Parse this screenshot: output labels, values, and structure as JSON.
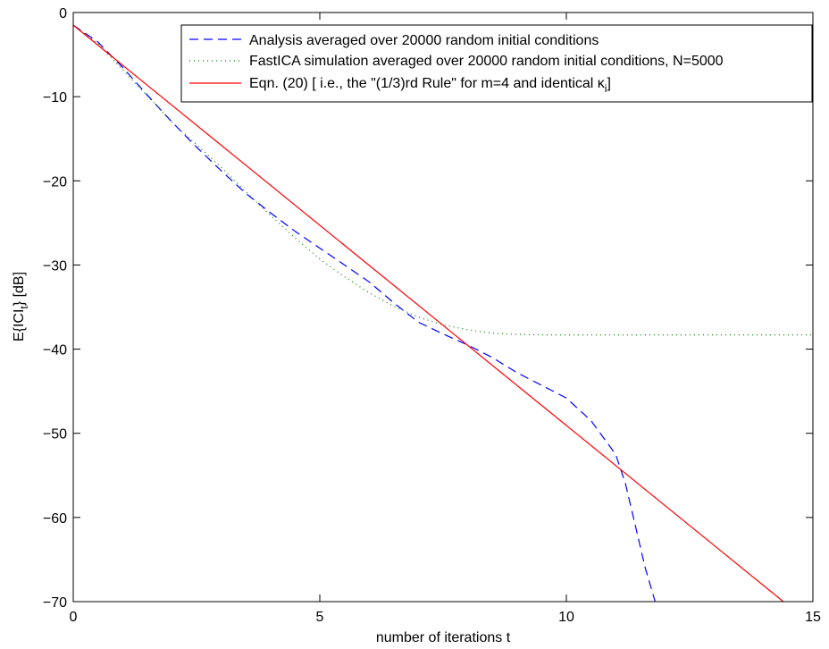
{
  "chart_data": {
    "type": "line",
    "title": "",
    "xlabel": "number of iterations  t",
    "ylabel": "E{ICI",
    "ylabel_sub": "t",
    "ylabel_tail": "}  [dB]",
    "xlim": [
      0,
      15
    ],
    "ylim": [
      -70,
      0
    ],
    "xticks": [
      0,
      5,
      10,
      15
    ],
    "yticks": [
      0,
      -10,
      -20,
      -30,
      -40,
      -50,
      -60,
      -70
    ],
    "grid": false,
    "legend_position": "top-right",
    "series": [
      {
        "name": "Analysis averaged over 20000 random initial conditions",
        "color": "#0000ff",
        "style": "dashed",
        "x": [
          0,
          0.5,
          1,
          1.5,
          2,
          2.5,
          3,
          3.5,
          4,
          4.5,
          5,
          5.5,
          6,
          6.5,
          7,
          7.5,
          8,
          8.5,
          9,
          9.5,
          10,
          10.5,
          11,
          11.2,
          11.4,
          11.6,
          11.8
        ],
        "y": [
          -1.5,
          -3.5,
          -6.5,
          -9.8,
          -13,
          -16,
          -18.8,
          -21.5,
          -23.8,
          -26,
          -28,
          -30,
          -32,
          -34.5,
          -36.8,
          -38.2,
          -39.5,
          -41,
          -42.8,
          -44.3,
          -45.8,
          -48.5,
          -52.5,
          -56,
          -61,
          -66,
          -70
        ]
      },
      {
        "name": "FastICA simulation averaged over 20000 random initial conditions, N=5000",
        "color": "#008000",
        "style": "dotted",
        "x": [
          0,
          0.5,
          1,
          1.5,
          2,
          2.5,
          3,
          3.5,
          4,
          4.5,
          5,
          5.5,
          6,
          6.5,
          7,
          7.5,
          8,
          8.5,
          9,
          9.5,
          10,
          11,
          12,
          13,
          14,
          15
        ],
        "y": [
          -1.5,
          -3.7,
          -6.8,
          -9.9,
          -13,
          -15.7,
          -18.4,
          -21.3,
          -24.1,
          -26.8,
          -29.3,
          -31.4,
          -33.3,
          -34.9,
          -36.2,
          -37.1,
          -37.7,
          -38.1,
          -38.25,
          -38.3,
          -38.3,
          -38.3,
          -38.3,
          -38.3,
          -38.3,
          -38.3
        ]
      },
      {
        "name": "Eqn. (20) [ i.e., the \"(1/3)rd Rule\" for m=4 and identical κ",
        "name_sub": "i",
        "name_tail": "]",
        "color": "#ff0000",
        "style": "solid",
        "x": [
          0,
          14.4
        ],
        "y": [
          -1.5,
          -70
        ]
      }
    ]
  }
}
